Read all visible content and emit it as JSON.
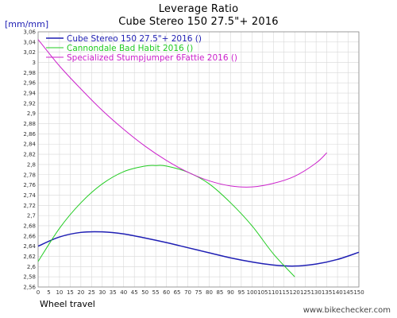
{
  "chart_data": {
    "type": "line",
    "title": "Leverage Ratio",
    "subtitle": "Cube Stereo 150 27.5\"+ 2016",
    "ylabel": "[mm/mm]",
    "xlabel": "Wheel travel",
    "xlim": [
      0,
      150
    ],
    "ylim": [
      2.56,
      3.06
    ],
    "x_ticks": [
      "0",
      "5",
      "10",
      "15",
      "20",
      "25",
      "30",
      "35",
      "40",
      "45",
      "50",
      "55",
      "60",
      "65",
      "70",
      "75",
      "80",
      "85",
      "90",
      "95",
      "100",
      "105",
      "110",
      "115",
      "120",
      "125",
      "130",
      "135",
      "140",
      "145",
      "150"
    ],
    "y_ticks": [
      "2,56",
      "2,58",
      "2,6",
      "2,62",
      "2,64",
      "2,66",
      "2,68",
      "2,7",
      "2,72",
      "2,74",
      "2,76",
      "2,78",
      "2,8",
      "2,82",
      "2,84",
      "2,86",
      "2,88",
      "2,9",
      "2,92",
      "2,94",
      "2,96",
      "2,98",
      "3",
      "3,02",
      "3,04",
      "3,06"
    ],
    "grid": true,
    "legend_position": "top-left",
    "series": [
      {
        "name": "Cube Stereo 150 27.5\"+ 2016 ()",
        "color": "#1f1fb4",
        "x": [
          0,
          10,
          20,
          30,
          40,
          50,
          60,
          70,
          80,
          90,
          100,
          110,
          120,
          130,
          140,
          150
        ],
        "y": [
          2.64,
          2.658,
          2.667,
          2.668,
          2.664,
          2.656,
          2.647,
          2.637,
          2.627,
          2.617,
          2.609,
          2.603,
          2.601,
          2.605,
          2.614,
          2.628
        ]
      },
      {
        "name": "Cannondale Bad Habit 2016 ()",
        "color": "#22cc22",
        "x": [
          0,
          10,
          20,
          30,
          40,
          50,
          55,
          60,
          70,
          80,
          90,
          100,
          110,
          120
        ],
        "y": [
          2.61,
          2.675,
          2.725,
          2.762,
          2.786,
          2.797,
          2.798,
          2.797,
          2.785,
          2.762,
          2.725,
          2.68,
          2.625,
          2.58
        ]
      },
      {
        "name": "Specialized Stumpjumper 6Fattie 2016 ()",
        "color": "#cc22cc",
        "x": [
          0,
          10,
          20,
          30,
          40,
          50,
          60,
          70,
          80,
          90,
          100,
          110,
          120,
          130,
          135
        ],
        "y": [
          3.045,
          2.993,
          2.948,
          2.906,
          2.869,
          2.836,
          2.808,
          2.785,
          2.768,
          2.758,
          2.756,
          2.763,
          2.777,
          2.803,
          2.823
        ]
      }
    ]
  },
  "footer": {
    "watermark": "www.bikechecker.com"
  }
}
